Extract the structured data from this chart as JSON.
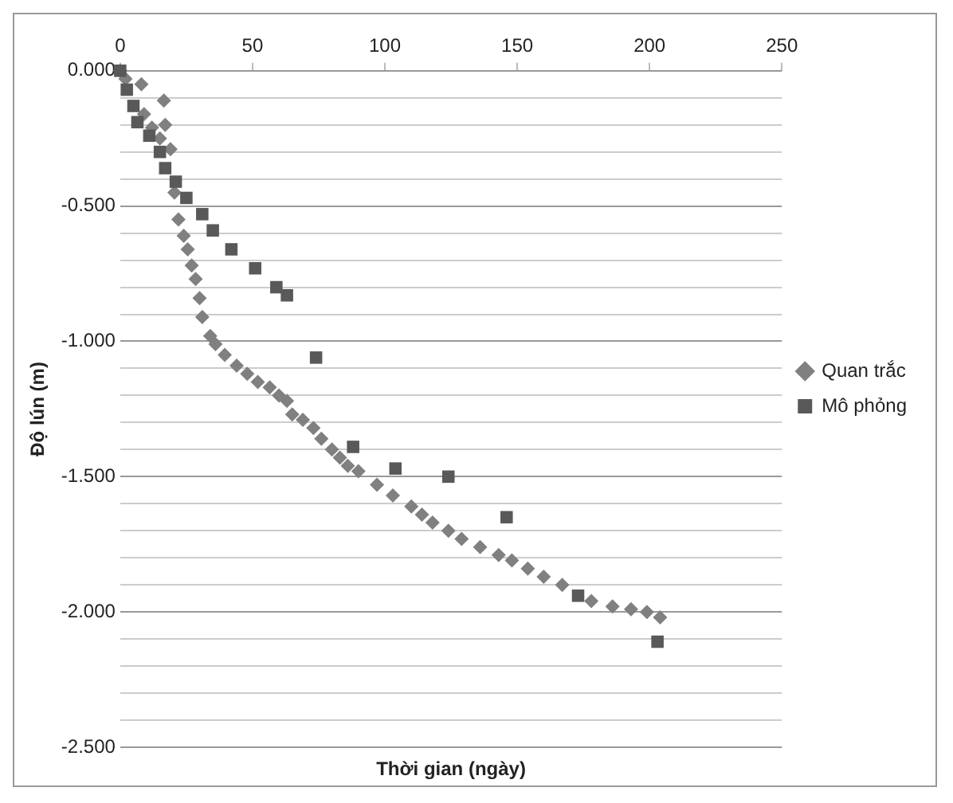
{
  "chart_data": {
    "type": "scatter",
    "xlabel": "Thời gian (ngày)",
    "ylabel": "Độ lún (m)",
    "xlim": [
      0,
      250
    ],
    "xticks": [
      0,
      50,
      100,
      150,
      200,
      250
    ],
    "ylim": [
      -2.5,
      0
    ],
    "yticks": [
      {
        "value": 0,
        "label": "0.000"
      },
      {
        "value": -0.1,
        "label": null
      },
      {
        "value": -0.2,
        "label": null
      },
      {
        "value": -0.3,
        "label": null
      },
      {
        "value": -0.4,
        "label": null
      },
      {
        "value": -0.5,
        "label": "-0.500"
      },
      {
        "value": -0.6,
        "label": null
      },
      {
        "value": -0.7,
        "label": null
      },
      {
        "value": -0.8,
        "label": null
      },
      {
        "value": -0.9,
        "label": null
      },
      {
        "value": -1,
        "label": "-1.000"
      },
      {
        "value": -1.1,
        "label": null
      },
      {
        "value": -1.2,
        "label": null
      },
      {
        "value": -1.3,
        "label": null
      },
      {
        "value": -1.4,
        "label": null
      },
      {
        "value": -1.5,
        "label": "-1.500"
      },
      {
        "value": -1.6,
        "label": null
      },
      {
        "value": -1.7,
        "label": null
      },
      {
        "value": -1.8,
        "label": null
      },
      {
        "value": -1.9,
        "label": null
      },
      {
        "value": -2,
        "label": "-2.000"
      },
      {
        "value": -2.1,
        "label": null
      },
      {
        "value": -2.2,
        "label": null
      },
      {
        "value": -2.3,
        "label": null
      },
      {
        "value": -2.4,
        "label": null
      },
      {
        "value": -2.5,
        "label": "-2.500"
      }
    ],
    "grid": "y",
    "legend": "right",
    "series": [
      {
        "name": "Quan trắc",
        "color": "#808080",
        "marker": "diamond",
        "x": [
          0,
          2,
          4,
          6,
          8,
          9,
          12,
          15,
          16.5,
          17,
          19,
          20.5,
          22,
          24,
          25.5,
          27,
          28.5,
          30,
          31,
          34,
          36,
          39.5,
          44,
          48,
          52,
          56.5,
          60,
          63,
          65,
          69,
          73,
          76,
          80,
          83,
          86,
          90,
          97,
          103,
          110,
          114,
          118,
          124,
          129,
          136,
          143,
          148,
          154,
          160,
          167,
          172,
          178,
          186,
          193,
          199,
          204
        ],
        "values": [
          0,
          -0.03,
          null,
          null,
          -0.05,
          -0.16,
          -0.21,
          -0.25,
          -0.11,
          -0.2,
          -0.29,
          -0.45,
          -0.55,
          -0.61,
          -0.66,
          -0.72,
          -0.77,
          -0.84,
          -0.91,
          -0.98,
          -1.01,
          -1.05,
          -1.09,
          -1.12,
          -1.15,
          -1.17,
          -1.2,
          -1.22,
          -1.27,
          -1.29,
          -1.32,
          -1.36,
          -1.4,
          -1.43,
          -1.46,
          -1.48,
          -1.53,
          -1.57,
          -1.61,
          -1.64,
          -1.67,
          -1.7,
          -1.73,
          -1.76,
          -1.79,
          -1.81,
          -1.84,
          -1.87,
          -1.9,
          null,
          -1.96,
          -1.98,
          -1.99,
          -2.0,
          -2.02
        ]
      },
      {
        "name": "Mô phỏng",
        "color": "#595959",
        "marker": "square",
        "x": [
          0,
          2.5,
          5,
          6.5,
          11,
          15,
          17,
          21,
          25,
          31,
          35,
          42,
          51,
          59,
          63,
          74,
          88,
          104,
          124,
          146,
          173,
          203
        ],
        "values": [
          0,
          -0.07,
          -0.13,
          -0.19,
          -0.24,
          -0.3,
          -0.36,
          -0.41,
          -0.47,
          -0.53,
          -0.59,
          -0.66,
          -0.73,
          -0.8,
          -0.83,
          -1.06,
          -1.39,
          -1.47,
          -1.5,
          -1.65,
          -1.94,
          -2.11
        ]
      }
    ]
  }
}
